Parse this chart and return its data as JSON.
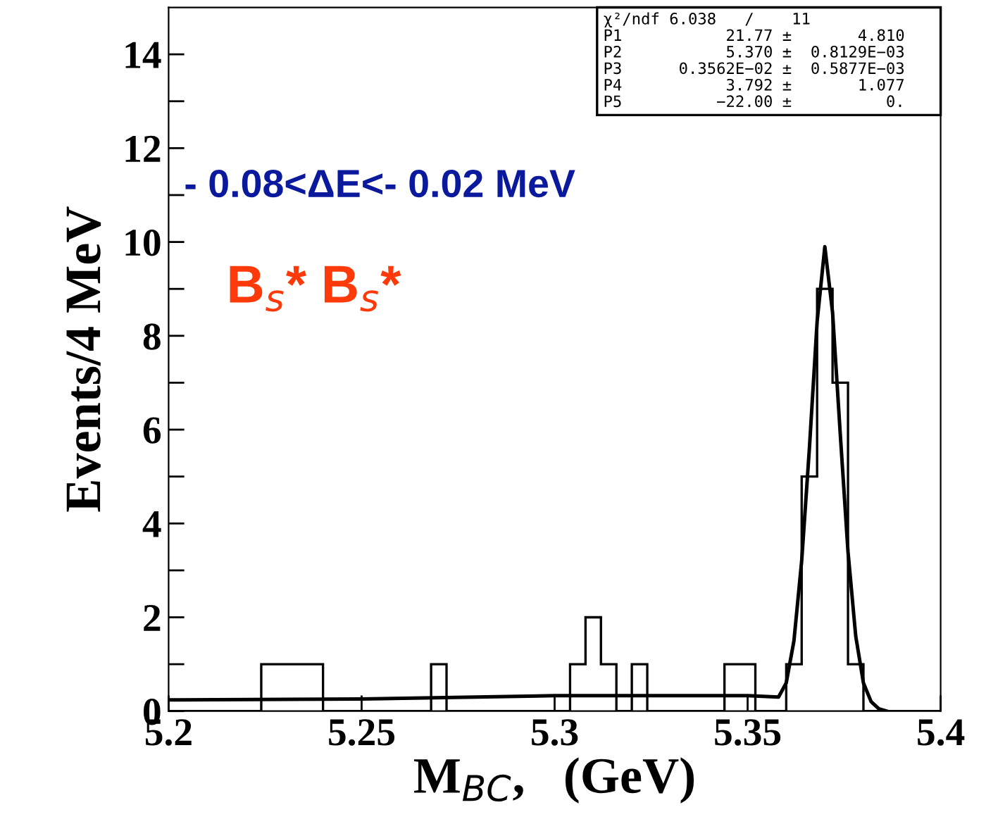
{
  "chart_data": {
    "type": "histogram",
    "bins": [
      5.2,
      5.204,
      5.208,
      5.212,
      5.216,
      5.22,
      5.224,
      5.228,
      5.232,
      5.236,
      5.24,
      5.244,
      5.248,
      5.252,
      5.256,
      5.26,
      5.264,
      5.268,
      5.272,
      5.276,
      5.28,
      5.284,
      5.288,
      5.292,
      5.296,
      5.3,
      5.304,
      5.308,
      5.312,
      5.316,
      5.32,
      5.324,
      5.328,
      5.332,
      5.336,
      5.34,
      5.344,
      5.348,
      5.352,
      5.356,
      5.36,
      5.364,
      5.368,
      5.372,
      5.376,
      5.38,
      5.384,
      5.388,
      5.392,
      5.396,
      5.4
    ],
    "values": [
      0,
      0,
      0,
      0,
      0,
      0,
      1,
      1,
      1,
      1,
      0,
      0,
      0,
      0,
      0,
      0,
      0,
      1,
      0,
      0,
      0,
      0,
      0,
      0,
      0,
      0,
      1,
      2,
      1,
      0,
      1,
      0,
      0,
      0,
      0,
      0,
      1,
      1,
      0,
      0,
      1,
      5,
      9,
      7,
      1,
      0,
      0,
      0,
      0,
      0
    ],
    "color": "#000000",
    "series": [
      {
        "type": "line",
        "color": "#000000",
        "x": [
          5.2,
          5.25,
          5.3,
          5.35,
          5.355,
          5.358,
          5.36,
          5.362,
          5.364,
          5.366,
          5.368,
          5.37,
          5.372,
          5.374,
          5.376,
          5.378,
          5.38,
          5.382,
          5.384,
          5.386
        ],
        "values": [
          0.24,
          0.26,
          0.33,
          0.33,
          0.31,
          0.3,
          0.6,
          1.5,
          3.2,
          5.6,
          8.3,
          9.9,
          8.5,
          5.9,
          3.4,
          1.6,
          0.6,
          0.2,
          0.05,
          0
        ]
      }
    ],
    "xlabel": "M$_{BC}$,   (GeV)",
    "ylabel": "Events/4 MeV",
    "xlim": [
      5.2,
      5.4
    ],
    "ylim": [
      0,
      15
    ],
    "xticks": [
      5.2,
      5.25,
      5.3,
      5.35,
      5.4
    ],
    "yticks": [
      0,
      {
        "value": 1,
        "label": null
      },
      2,
      {
        "value": 3,
        "label": null
      },
      4,
      {
        "value": 5,
        "label": null
      },
      6,
      {
        "value": 7,
        "label": null
      },
      8,
      {
        "value": 9,
        "label": null
      },
      10,
      {
        "value": 11,
        "label": null
      },
      12,
      {
        "value": 13,
        "label": null
      },
      14
    ],
    "grid": false,
    "legend": false,
    "annotations": [
      "χ²/ndf 6.038   /    11",
      "P1           21.77 ±       4.810",
      "P2           5.370 ±  0.8129E−03",
      "P3      0.3562E−02 ±  0.5877E−03",
      "P4           3.792 ±       1.077",
      "P5          −22.00 ±          0.",
      "- 0.08<ΔE<- 0.02 MeV",
      "B$_{s}$* B$_{s}$*"
    ]
  }
}
